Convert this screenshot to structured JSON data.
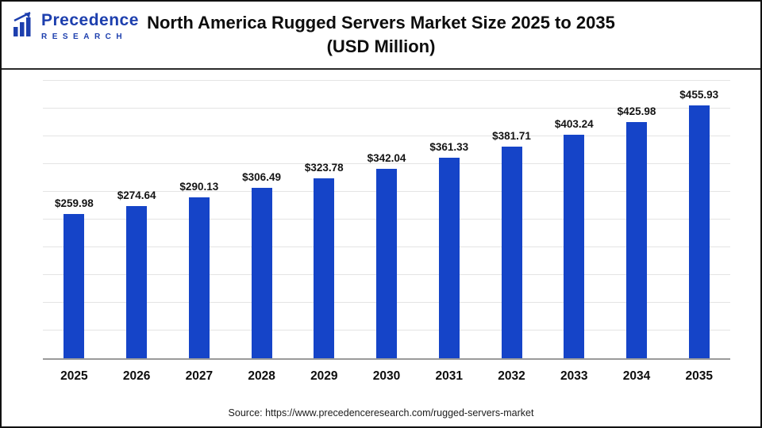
{
  "logo": {
    "line1": "Precedence",
    "line2": "RESEARCH"
  },
  "header": {
    "title_line1": "North America Rugged Servers Market Size 2025 to 2035",
    "title_line2": "(USD Million)"
  },
  "chart_data": {
    "type": "bar",
    "title": "North America Rugged Servers Market Size 2025 to 2035 (USD Million)",
    "categories": [
      "2025",
      "2026",
      "2027",
      "2028",
      "2029",
      "2030",
      "2031",
      "2032",
      "2033",
      "2034",
      "2035"
    ],
    "values": [
      259.98,
      274.64,
      290.13,
      306.49,
      323.78,
      342.04,
      361.33,
      381.71,
      403.24,
      425.98,
      455.93
    ],
    "labels": [
      "$259.98",
      "$274.64",
      "$290.13",
      "$306.49",
      "$323.78",
      "$342.04",
      "$361.33",
      "$381.71",
      "$403.24",
      "$425.98",
      "$455.93"
    ],
    "xlabel": "",
    "ylabel": "",
    "ylim": [
      0,
      500
    ],
    "grid_step": 50,
    "grid": true,
    "legend": "none",
    "bar_color": "#1544c8"
  },
  "footer": {
    "source": "Source: https://www.precedenceresearch.com/rugged-servers-market"
  }
}
